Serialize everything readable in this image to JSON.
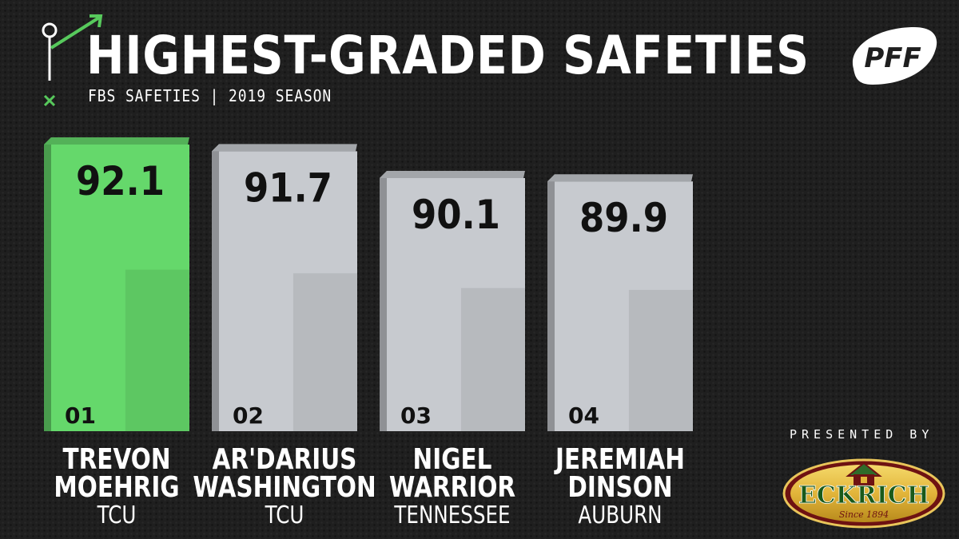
{
  "header": {
    "title": "HIGHEST-GRADED SAFETIES",
    "subtitle": "FBS SAFETIES | 2019 SEASON"
  },
  "brand": {
    "logo_text": "PFF",
    "presented_label": "PRESENTED BY",
    "sponsor_name": "ECKRICH",
    "sponsor_tagline": "Since 1894"
  },
  "colors": {
    "highlight": "#65d86b",
    "bar": "#c7cacf",
    "background": "#1f1f1f",
    "text": "#ffffff",
    "value_text": "#111111"
  },
  "chart_data": {
    "type": "bar",
    "ylim": [
      0,
      100
    ],
    "categories": [
      "TREVON MOEHRIG",
      "AR'DARIUS WASHINGTON",
      "NIGEL WARRIOR",
      "JEREMIAH DINSON"
    ],
    "series": [
      {
        "values": [
          92.1,
          91.7,
          90.1,
          89.9
        ]
      }
    ],
    "ranks": [
      "01",
      "02",
      "03",
      "04"
    ],
    "first_names": [
      "TREVON",
      "AR'DARIUS",
      "NIGEL",
      "JEREMIAH"
    ],
    "last_names": [
      "MOEHRIG",
      "WASHINGTON",
      "WARRIOR",
      "DINSON"
    ],
    "teams": [
      "TCU",
      "TCU",
      "TENNESSEE",
      "AUBURN"
    ],
    "value_labels": [
      "92.1",
      "91.7",
      "90.1",
      "89.9"
    ],
    "highlight_index": 0
  }
}
